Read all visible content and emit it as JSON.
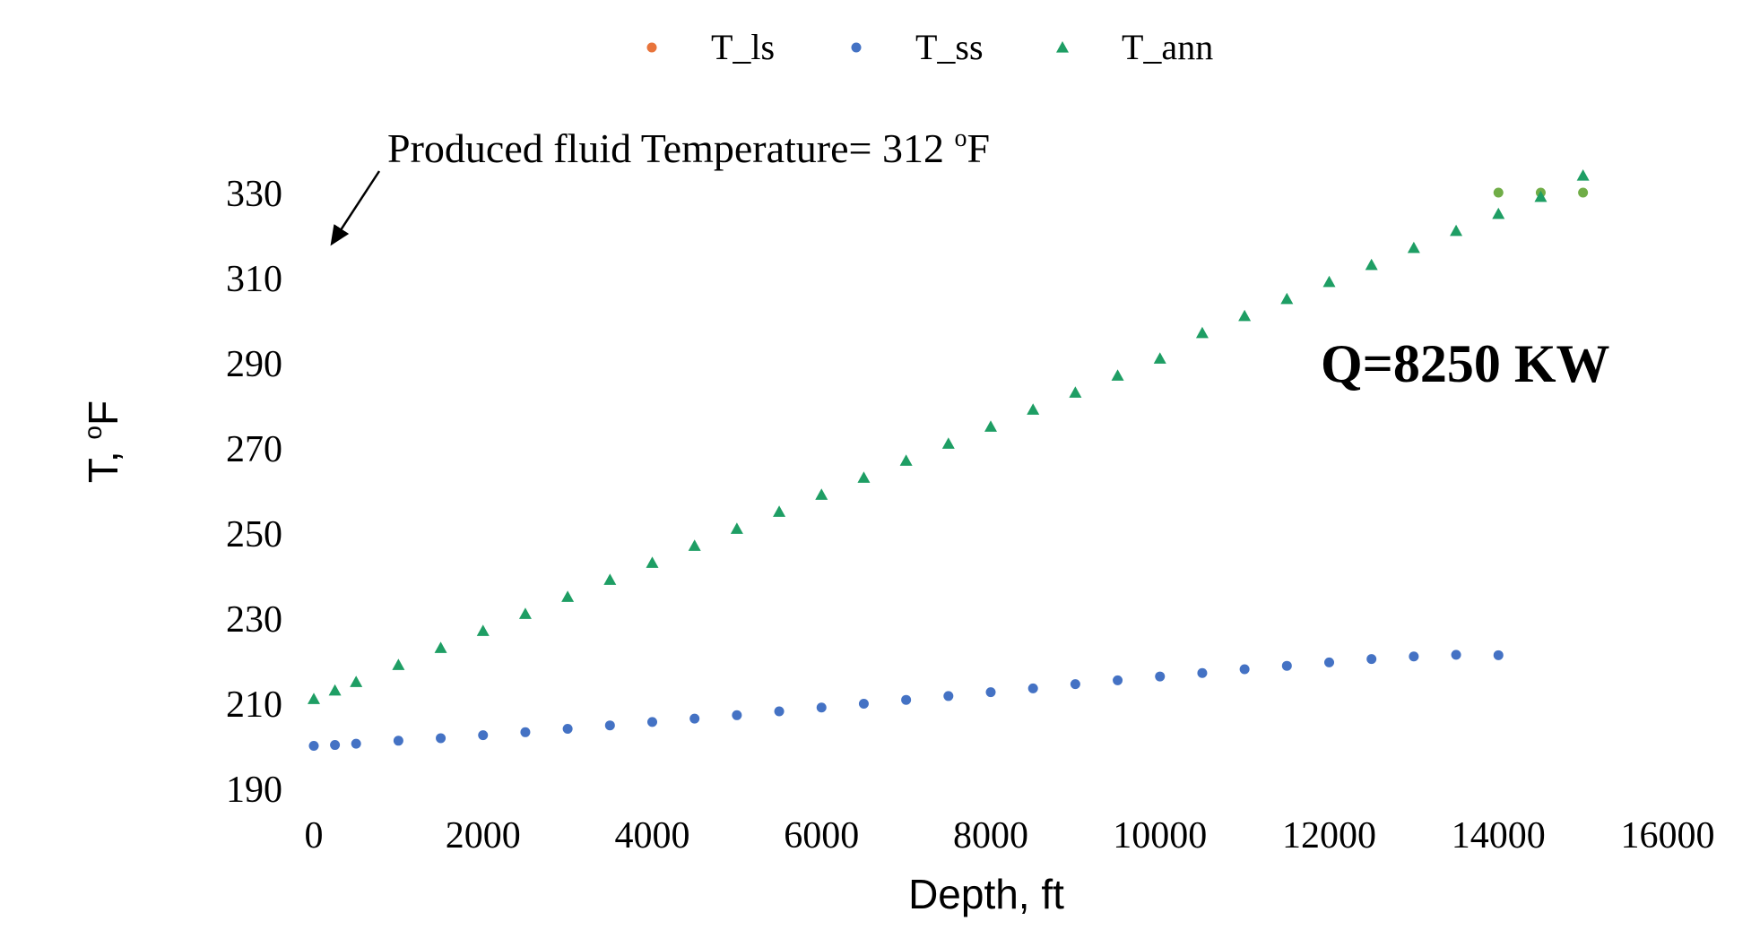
{
  "chart_data": {
    "type": "scatter",
    "xlabel": "Depth, ft",
    "ylabel": "T, ",
    "ylabel_sup": "o",
    "ylabel_unit": "F",
    "xlim": [
      0,
      16000
    ],
    "ylim": [
      190,
      330
    ],
    "xticks": [
      0,
      2000,
      4000,
      6000,
      8000,
      10000,
      12000,
      14000,
      16000
    ],
    "yticks": [
      190,
      210,
      230,
      250,
      270,
      290,
      310,
      330
    ],
    "grid": false,
    "legend_position": "top-center",
    "annotation": {
      "text": "Produced fluid Temperature= 312 ",
      "sup": "o",
      "unit": "F",
      "arrow": true
    },
    "note": "Q=8250 KW",
    "series": [
      {
        "name": "T_ls",
        "marker": "circle",
        "color": "#E8743B",
        "x": [
          14000,
          14500,
          15000
        ],
        "y": [
          330,
          330,
          330
        ],
        "render_color": "#70AD47"
      },
      {
        "name": "T_ss",
        "marker": "circle",
        "color": "#4472C4",
        "x": [
          0,
          250,
          500,
          1000,
          1500,
          2000,
          2500,
          3000,
          3500,
          4000,
          4500,
          5000,
          5500,
          6000,
          6500,
          7000,
          7500,
          8000,
          8500,
          9000,
          9500,
          10000,
          10500,
          11000,
          11500,
          12000,
          12500,
          13000,
          13500,
          14000
        ],
        "y": [
          200,
          200.2,
          200.5,
          201.2,
          201.8,
          202.5,
          203.2,
          204,
          204.8,
          205.6,
          206.4,
          207.2,
          208.1,
          209,
          209.9,
          210.8,
          211.7,
          212.6,
          213.5,
          214.5,
          215.4,
          216.3,
          217.1,
          218,
          218.8,
          219.6,
          220.4,
          221,
          221.4,
          221.3
        ]
      },
      {
        "name": "T_ann",
        "marker": "triangle",
        "color": "#1E9E64",
        "x": [
          0,
          250,
          500,
          1000,
          1500,
          2000,
          2500,
          3000,
          3500,
          4000,
          4500,
          5000,
          5500,
          6000,
          6500,
          7000,
          7500,
          8000,
          8500,
          9000,
          9500,
          10000,
          10500,
          11000,
          11500,
          12000,
          12500,
          13000,
          13500,
          14000,
          14500,
          15000
        ],
        "y": [
          211,
          213,
          215,
          219,
          223,
          227,
          231,
          235,
          239,
          243,
          247,
          251,
          255,
          259,
          263,
          267,
          271,
          275,
          279,
          283,
          287,
          291,
          297,
          301,
          305,
          309,
          313,
          317,
          321,
          325,
          329,
          334
        ]
      }
    ]
  }
}
